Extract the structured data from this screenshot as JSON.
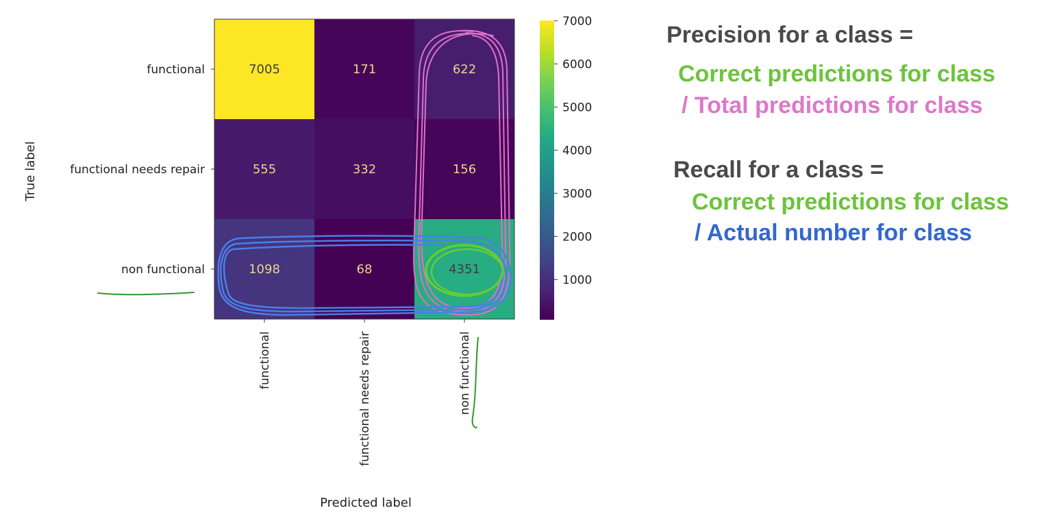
{
  "chart_data": {
    "type": "heatmap",
    "title": "",
    "xlabel": "Predicted label",
    "ylabel": "True label",
    "row_labels": [
      "functional",
      "functional needs repair",
      "non functional"
    ],
    "col_labels": [
      "functional",
      "functional needs repair",
      "non functional"
    ],
    "values": [
      [
        7005,
        171,
        622
      ],
      [
        555,
        332,
        156
      ],
      [
        1098,
        68,
        4351
      ]
    ],
    "colormap": "viridis",
    "colorbar": {
      "range": [
        68,
        7005
      ],
      "ticks": [
        1000,
        2000,
        3000,
        4000,
        5000,
        6000,
        7000
      ],
      "tick_labels": [
        "1000",
        "2000",
        "3000",
        "4000",
        "5000",
        "6000",
        "7000"
      ]
    },
    "grid": false,
    "text_colors": {
      "light_cell": "#3d3d3d",
      "dark_cell": "#e8d58c"
    },
    "annotations": {
      "highlights": [
        {
          "target": "column",
          "index": 2,
          "color": "#e070c8"
        },
        {
          "target": "row",
          "index": 2,
          "color": "#4a7fe8"
        },
        {
          "target": "cell",
          "row": 2,
          "col": 2,
          "color": "#66cc33"
        }
      ],
      "underlines": [
        {
          "target": "row-label",
          "index": 2,
          "color": "#2a9a2a"
        },
        {
          "target": "col-label",
          "index": 2,
          "color": "#2a9a2a"
        }
      ]
    }
  },
  "formulas": {
    "precision": {
      "heading": "Precision for a class =",
      "numerator": "Correct predictions for class",
      "denominator": "/ Total predictions for class"
    },
    "recall": {
      "heading": "Recall for a class =",
      "numerator": "Correct predictions for class",
      "denominator": "/ Actual number for class"
    }
  },
  "colors": {
    "heading": "#4a4a4a",
    "green": "#6cc33c",
    "pink": "#dd77c9",
    "blue": "#3367d0"
  }
}
